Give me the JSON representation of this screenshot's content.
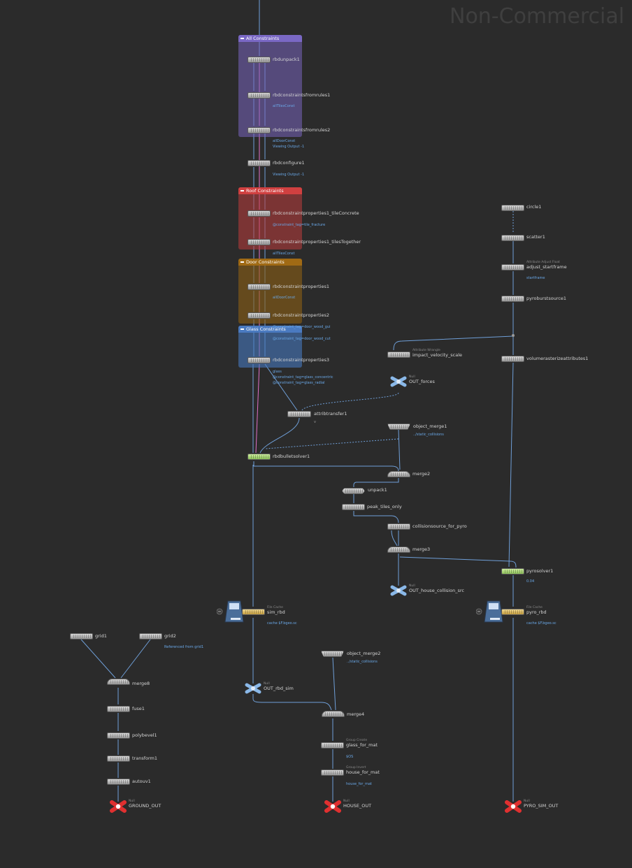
{
  "watermark": "Non-Commercial Ed",
  "netboxes": {
    "all": {
      "title": "All Constraints",
      "color": "#6a5aa8"
    },
    "roof": {
      "title": "Roof Constraints",
      "color": "#c03a3a"
    },
    "door": {
      "title": "Door Constraints",
      "color": "#8a5a12"
    },
    "glass": {
      "title": "Glass Constraints",
      "color": "#3a6aa8"
    }
  },
  "nodes": {
    "rbdunpack1": {
      "name": "rbdunpack1"
    },
    "rbdcfr1": {
      "name": "rbdconstraintsfromrules1",
      "sub": "allTilesConst"
    },
    "rbdcfr2": {
      "name": "rbdconstraintsfromrules2",
      "sub": "allDoorConst",
      "sub2": "Viewing Output -1"
    },
    "rbdconfigure1": {
      "name": "rbdconfigure1",
      "sub": "Viewing Output -1"
    },
    "tileConcrete": {
      "name": "rbdconstraintproperties1_tileConcrete",
      "sub": "@constraint_tag=tile_fracture"
    },
    "tilesTogether": {
      "name": "rbdconstraintproperties1_tilesTogether",
      "sub": "allTilesConst"
    },
    "rbdcp1": {
      "name": "rbdconstraintproperties1",
      "sub": "allDoorConst"
    },
    "rbdcp2": {
      "name": "rbdconstraintproperties2",
      "sub": "@constraint_tag=door_wood_gui",
      "sub2": "@constraint_tag=door_wood_cut"
    },
    "rbdcp3": {
      "name": "rbdconstraintproperties3",
      "sub": "glass",
      "sub2": "@constraint_tag=glass_concentric",
      "sub3": "@constraint_tag=glass_radial"
    },
    "attribtransfer1": {
      "name": "attribtransfer1",
      "flag": "v"
    },
    "rbdbulletsolver1": {
      "name": "rbdbulletsolver1"
    },
    "impact_velocity_scale": {
      "name": "impact_velocity_scale",
      "type": "Attribute Wrangle"
    },
    "OUT_forces": {
      "name": "OUT_forces",
      "type": "Null"
    },
    "object_merge1": {
      "name": "object_merge1",
      "sub": "../static_collisions"
    },
    "merge2": {
      "name": "merge2"
    },
    "unpack1": {
      "name": "unpack1"
    },
    "peak_tiles_only": {
      "name": "peak_tiles_only"
    },
    "collisionsource_for_pyro": {
      "name": "collisionsource_for_pyro"
    },
    "merge3": {
      "name": "merge3"
    },
    "OUT_house_collision_src": {
      "name": "OUT_house_collision_src",
      "type": "Null"
    },
    "circle1": {
      "name": "circle1"
    },
    "scatter1": {
      "name": "scatter1"
    },
    "adjust_startframe": {
      "name": "adjust_startframe",
      "type": "Attribute Adjust Float",
      "sub": "startframe"
    },
    "pyroburstsource1": {
      "name": "pyroburstsource1"
    },
    "volumerasterizeattributes1": {
      "name": "volumerasterizeattributes1"
    },
    "pyrosolver1": {
      "name": "pyrosolver1",
      "sub": "0.04"
    },
    "sim_rbd": {
      "name": "sim_rbd",
      "type": "File Cache",
      "sub": "cache $F.bgeo.sc"
    },
    "pyro_rbd": {
      "name": "pyro_rbd",
      "type": "File Cache",
      "sub": "cache $F.bgeo.sc"
    },
    "OUT_rbd_sim": {
      "name": "OUT_rbd_sim",
      "type": "Null"
    },
    "grid1": {
      "name": "grid1"
    },
    "grid2": {
      "name": "grid2",
      "sub": "Referenced from grid1"
    },
    "merge8": {
      "name": "merge8"
    },
    "fuse1": {
      "name": "fuse1"
    },
    "polybevel1": {
      "name": "polybevel1"
    },
    "transform1": {
      "name": "transform1"
    },
    "autouv1": {
      "name": "autouv1"
    },
    "GROUND_OUT": {
      "name": "GROUND_OUT",
      "type": "Null"
    },
    "object_merge2": {
      "name": "object_merge2",
      "sub": "../static_collisions"
    },
    "merge4": {
      "name": "merge4"
    },
    "glass_for_mat": {
      "name": "glass_for_mat",
      "type": "Group Create",
      "sub": "$OS"
    },
    "house_for_mat": {
      "name": "house_for_mat",
      "type": "Group Invert",
      "sub": "house_for_mat"
    },
    "HOUSE_OUT": {
      "name": "HOUSE_OUT",
      "type": "Null"
    },
    "PYRO_SIM_OUT": {
      "name": "PYRO_SIM_OUT",
      "type": "Null"
    }
  }
}
